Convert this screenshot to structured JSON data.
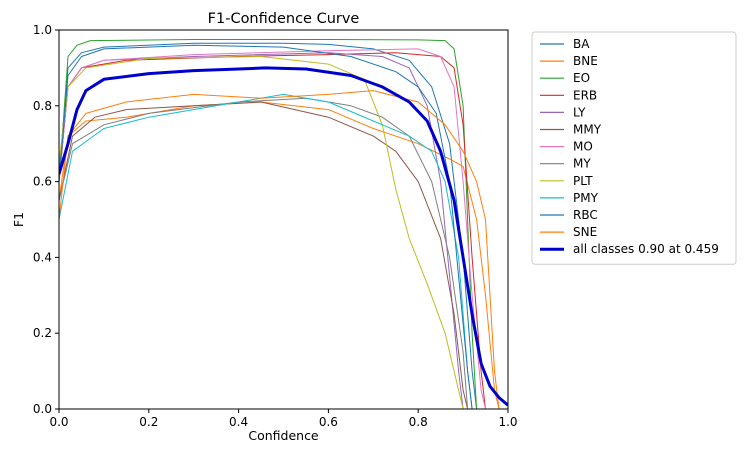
{
  "chart_data": {
    "type": "line",
    "title": "F1-Confidence Curve",
    "xlabel": "Confidence",
    "ylabel": "F1",
    "xlim": [
      0.0,
      1.0
    ],
    "ylim": [
      0.0,
      1.0
    ],
    "x_ticks": [
      "0.0",
      "0.2",
      "0.4",
      "0.6",
      "0.8",
      "1.0"
    ],
    "y_ticks": [
      "0.0",
      "0.2",
      "0.4",
      "0.6",
      "0.8",
      "1.0"
    ],
    "legend_position": "outside-right",
    "series": [
      {
        "name": "BA",
        "color": "#1f77b4",
        "points": [
          [
            0,
            0.62
          ],
          [
            0.02,
            0.9
          ],
          [
            0.05,
            0.94
          ],
          [
            0.1,
            0.955
          ],
          [
            0.3,
            0.965
          ],
          [
            0.5,
            0.965
          ],
          [
            0.6,
            0.962
          ],
          [
            0.7,
            0.95
          ],
          [
            0.78,
            0.92
          ],
          [
            0.83,
            0.85
          ],
          [
            0.87,
            0.7
          ],
          [
            0.9,
            0.4
          ],
          [
            0.92,
            0.1
          ],
          [
            0.93,
            0.0
          ]
        ]
      },
      {
        "name": "BNE",
        "color": "#ff7f0e",
        "points": [
          [
            0,
            0.55
          ],
          [
            0.02,
            0.72
          ],
          [
            0.06,
            0.76
          ],
          [
            0.15,
            0.77
          ],
          [
            0.3,
            0.8
          ],
          [
            0.45,
            0.81
          ],
          [
            0.6,
            0.79
          ],
          [
            0.7,
            0.74
          ],
          [
            0.8,
            0.7
          ],
          [
            0.87,
            0.66
          ],
          [
            0.9,
            0.64
          ],
          [
            0.93,
            0.5
          ],
          [
            0.95,
            0.3
          ],
          [
            0.97,
            0.05
          ],
          [
            0.98,
            0.0
          ]
        ]
      },
      {
        "name": "EO",
        "color": "#2ca02c",
        "points": [
          [
            0,
            0.6
          ],
          [
            0.02,
            0.93
          ],
          [
            0.04,
            0.96
          ],
          [
            0.07,
            0.972
          ],
          [
            0.3,
            0.975
          ],
          [
            0.6,
            0.975
          ],
          [
            0.8,
            0.974
          ],
          [
            0.86,
            0.972
          ],
          [
            0.88,
            0.95
          ],
          [
            0.9,
            0.8
          ],
          [
            0.91,
            0.5
          ],
          [
            0.92,
            0.2
          ],
          [
            0.93,
            0.0
          ]
        ]
      },
      {
        "name": "ERB",
        "color": "#d62728",
        "points": [
          [
            0,
            0.6
          ],
          [
            0.02,
            0.85
          ],
          [
            0.05,
            0.9
          ],
          [
            0.15,
            0.92
          ],
          [
            0.4,
            0.93
          ],
          [
            0.6,
            0.935
          ],
          [
            0.75,
            0.94
          ],
          [
            0.85,
            0.93
          ],
          [
            0.88,
            0.9
          ],
          [
            0.9,
            0.75
          ],
          [
            0.92,
            0.4
          ],
          [
            0.94,
            0.1
          ],
          [
            0.95,
            0.0
          ]
        ]
      },
      {
        "name": "LY",
        "color": "#9467bd",
        "points": [
          [
            0,
            0.6
          ],
          [
            0.02,
            0.85
          ],
          [
            0.05,
            0.9
          ],
          [
            0.1,
            0.92
          ],
          [
            0.3,
            0.93
          ],
          [
            0.6,
            0.94
          ],
          [
            0.72,
            0.93
          ],
          [
            0.78,
            0.9
          ],
          [
            0.82,
            0.8
          ],
          [
            0.85,
            0.6
          ],
          [
            0.87,
            0.35
          ],
          [
            0.89,
            0.1
          ],
          [
            0.9,
            0.0
          ]
        ]
      },
      {
        "name": "MMY",
        "color": "#8c564b",
        "points": [
          [
            0,
            0.55
          ],
          [
            0.03,
            0.72
          ],
          [
            0.08,
            0.77
          ],
          [
            0.15,
            0.79
          ],
          [
            0.3,
            0.8
          ],
          [
            0.45,
            0.81
          ],
          [
            0.6,
            0.77
          ],
          [
            0.7,
            0.72
          ],
          [
            0.75,
            0.68
          ],
          [
            0.8,
            0.6
          ],
          [
            0.85,
            0.45
          ],
          [
            0.88,
            0.25
          ],
          [
            0.9,
            0.05
          ],
          [
            0.91,
            0.0
          ]
        ]
      },
      {
        "name": "MO",
        "color": "#e377c2",
        "points": [
          [
            0,
            0.6
          ],
          [
            0.02,
            0.85
          ],
          [
            0.05,
            0.9
          ],
          [
            0.1,
            0.92
          ],
          [
            0.3,
            0.935
          ],
          [
            0.6,
            0.945
          ],
          [
            0.8,
            0.95
          ],
          [
            0.85,
            0.93
          ],
          [
            0.88,
            0.85
          ],
          [
            0.9,
            0.6
          ],
          [
            0.92,
            0.3
          ],
          [
            0.94,
            0.05
          ],
          [
            0.95,
            0.0
          ]
        ]
      },
      {
        "name": "MY",
        "color": "#7f7f7f",
        "points": [
          [
            0,
            0.55
          ],
          [
            0.03,
            0.7
          ],
          [
            0.1,
            0.75
          ],
          [
            0.2,
            0.78
          ],
          [
            0.4,
            0.81
          ],
          [
            0.55,
            0.82
          ],
          [
            0.65,
            0.8
          ],
          [
            0.72,
            0.77
          ],
          [
            0.78,
            0.72
          ],
          [
            0.83,
            0.6
          ],
          [
            0.87,
            0.4
          ],
          [
            0.9,
            0.15
          ],
          [
            0.91,
            0.0
          ]
        ]
      },
      {
        "name": "PLT",
        "color": "#bcbd22",
        "points": [
          [
            0,
            0.65
          ],
          [
            0.02,
            0.85
          ],
          [
            0.06,
            0.9
          ],
          [
            0.2,
            0.925
          ],
          [
            0.45,
            0.93
          ],
          [
            0.6,
            0.91
          ],
          [
            0.68,
            0.87
          ],
          [
            0.72,
            0.75
          ],
          [
            0.75,
            0.58
          ],
          [
            0.78,
            0.45
          ],
          [
            0.82,
            0.33
          ],
          [
            0.86,
            0.2
          ],
          [
            0.89,
            0.05
          ],
          [
            0.9,
            0.0
          ]
        ]
      },
      {
        "name": "PMY",
        "color": "#17becf",
        "points": [
          [
            0,
            0.5
          ],
          [
            0.03,
            0.68
          ],
          [
            0.1,
            0.74
          ],
          [
            0.2,
            0.77
          ],
          [
            0.35,
            0.8
          ],
          [
            0.5,
            0.83
          ],
          [
            0.6,
            0.81
          ],
          [
            0.7,
            0.76
          ],
          [
            0.78,
            0.72
          ],
          [
            0.83,
            0.68
          ],
          [
            0.86,
            0.6
          ],
          [
            0.89,
            0.4
          ],
          [
            0.91,
            0.1
          ],
          [
            0.92,
            0.0
          ]
        ]
      },
      {
        "name": "RBC",
        "color": "#1f77b4",
        "points": [
          [
            0,
            0.6
          ],
          [
            0.02,
            0.88
          ],
          [
            0.05,
            0.93
          ],
          [
            0.1,
            0.95
          ],
          [
            0.3,
            0.96
          ],
          [
            0.5,
            0.955
          ],
          [
            0.65,
            0.93
          ],
          [
            0.75,
            0.89
          ],
          [
            0.8,
            0.85
          ],
          [
            0.84,
            0.78
          ],
          [
            0.87,
            0.6
          ],
          [
            0.89,
            0.35
          ],
          [
            0.91,
            0.1
          ],
          [
            0.92,
            0.0
          ]
        ]
      },
      {
        "name": "SNE",
        "color": "#ff7f0e",
        "points": [
          [
            0,
            0.5
          ],
          [
            0.02,
            0.72
          ],
          [
            0.06,
            0.78
          ],
          [
            0.15,
            0.81
          ],
          [
            0.3,
            0.83
          ],
          [
            0.45,
            0.82
          ],
          [
            0.6,
            0.83
          ],
          [
            0.7,
            0.84
          ],
          [
            0.8,
            0.81
          ],
          [
            0.86,
            0.75
          ],
          [
            0.9,
            0.68
          ],
          [
            0.93,
            0.6
          ],
          [
            0.95,
            0.5
          ],
          [
            0.96,
            0.3
          ],
          [
            0.97,
            0.1
          ],
          [
            0.98,
            0.0
          ]
        ]
      },
      {
        "name": "all classes 0.90 at 0.459",
        "color": "#0000cd",
        "emphasis": true,
        "points": [
          [
            0,
            0.62
          ],
          [
            0.02,
            0.7
          ],
          [
            0.04,
            0.79
          ],
          [
            0.06,
            0.84
          ],
          [
            0.1,
            0.87
          ],
          [
            0.2,
            0.885
          ],
          [
            0.3,
            0.893
          ],
          [
            0.4,
            0.897
          ],
          [
            0.459,
            0.9
          ],
          [
            0.55,
            0.897
          ],
          [
            0.65,
            0.88
          ],
          [
            0.72,
            0.85
          ],
          [
            0.78,
            0.81
          ],
          [
            0.82,
            0.76
          ],
          [
            0.85,
            0.68
          ],
          [
            0.88,
            0.55
          ],
          [
            0.9,
            0.4
          ],
          [
            0.92,
            0.25
          ],
          [
            0.94,
            0.12
          ],
          [
            0.96,
            0.06
          ],
          [
            0.98,
            0.03
          ],
          [
            1.0,
            0.01
          ]
        ]
      }
    ]
  }
}
